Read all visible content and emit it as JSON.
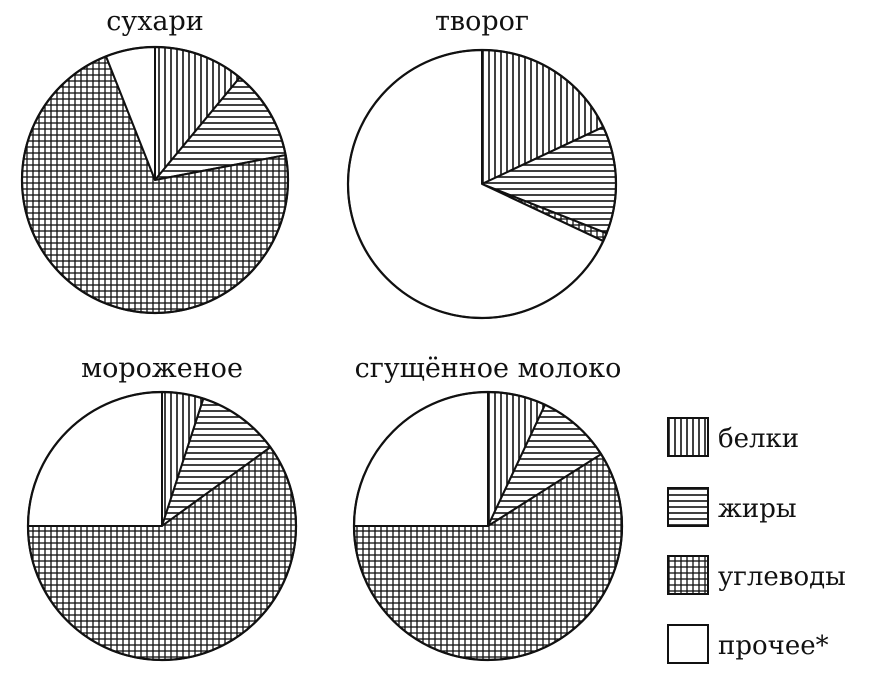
{
  "chart_data": [
    {
      "type": "pie",
      "title": "сухари",
      "slices": [
        {
          "category": "белки",
          "value": 11
        },
        {
          "category": "жиры",
          "value": 11
        },
        {
          "category": "углеводы",
          "value": 72
        },
        {
          "category": "прочее*",
          "value": 6
        }
      ]
    },
    {
      "type": "pie",
      "title": "творог",
      "slices": [
        {
          "category": "белки",
          "value": 18
        },
        {
          "category": "жиры",
          "value": 13
        },
        {
          "category": "углеводы",
          "value": 1
        },
        {
          "category": "прочее*",
          "value": 68
        }
      ]
    },
    {
      "type": "pie",
      "title": "мороженое",
      "slices": [
        {
          "category": "белки",
          "value": 5
        },
        {
          "category": "жиры",
          "value": 10
        },
        {
          "category": "углеводы",
          "value": 60
        },
        {
          "category": "прочее*",
          "value": 25
        }
      ]
    },
    {
      "type": "pie",
      "title": "сгущённое молоко",
      "slices": [
        {
          "category": "белки",
          "value": 7
        },
        {
          "category": "жиры",
          "value": 9
        },
        {
          "category": "углеводы",
          "value": 59
        },
        {
          "category": "прочее*",
          "value": 25
        }
      ]
    }
  ],
  "legend": {
    "placement": "right",
    "items": [
      {
        "label": "белки",
        "pattern": "vertical-lines"
      },
      {
        "label": "жиры",
        "pattern": "horizontal-lines"
      },
      {
        "label": "углеводы",
        "pattern": "crosshatch"
      },
      {
        "label": "прочее*",
        "pattern": "blank"
      }
    ]
  },
  "colors": {
    "ink": "#111111",
    "background": "#ffffff"
  }
}
